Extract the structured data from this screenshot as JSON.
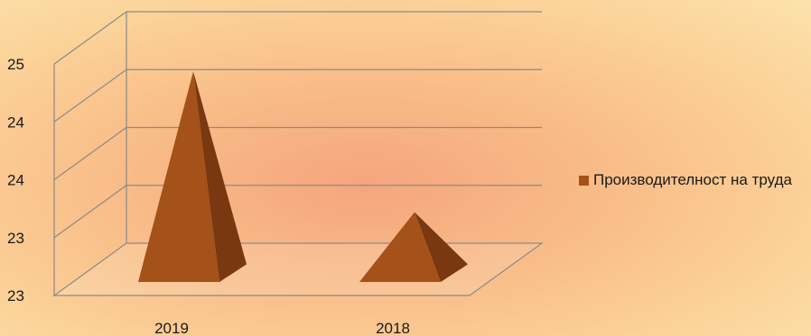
{
  "chart_data": {
    "type": "bar",
    "bar_shape": "pyramid",
    "categories": [
      "2019",
      "2018"
    ],
    "series": [
      {
        "name": "Производителност на труда",
        "values": [
          24.92,
          23.4
        ]
      }
    ],
    "ylim": [
      22.5,
      25.0
    ],
    "ytick_labels": [
      "23",
      "23",
      "24",
      "24",
      "25"
    ],
    "grid": true,
    "legend_position": "right",
    "colors": {
      "series": "#a4511a",
      "series_shade": "#7a3810",
      "grid": "#8a8a8a"
    }
  }
}
